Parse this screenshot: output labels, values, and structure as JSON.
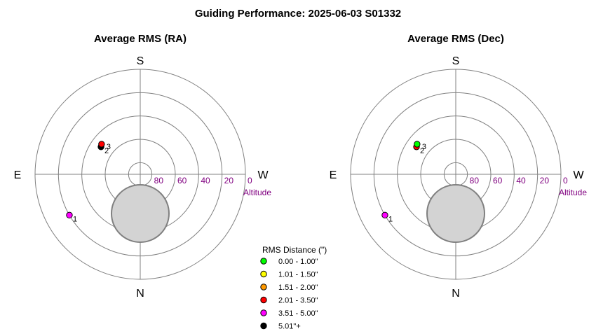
{
  "title": "Guiding Performance: 2025-06-03 S01332",
  "colors": {
    "ring": "#808080",
    "axis": "#808080",
    "altitude": "#800080",
    "zenith_fill": "#d3d3d3",
    "zenith_stroke": "#808080"
  },
  "legend": {
    "title": "RMS Distance (\")",
    "items": [
      {
        "label": "0.00 - 1.00\"",
        "color": "#00ff00"
      },
      {
        "label": "1.01 - 1.50\"",
        "color": "#ffff00"
      },
      {
        "label": "1.51 - 2.00\"",
        "color": "#ff9900"
      },
      {
        "label": "2.01 - 3.50\"",
        "color": "#ff0000"
      },
      {
        "label": "3.51 - 5.00\"",
        "color": "#ff00ff"
      },
      {
        "label": "5.01\"+",
        "color": "#000000"
      }
    ]
  },
  "chart_data": [
    {
      "type": "scatter",
      "projection": "polar-sky",
      "title": "Average RMS (RA)",
      "directions": {
        "top": "S",
        "bottom": "N",
        "left": "E",
        "right": "W"
      },
      "altitude_ticks": [
        "80",
        "60",
        "40",
        "20",
        "0"
      ],
      "altitude_label": "Altitude",
      "points": [
        {
          "label": "1",
          "azimuth": 60,
          "altitude": 20,
          "color": "#ff00ff"
        },
        {
          "label": "2",
          "azimuth": 125,
          "altitude": 49,
          "color": "#000000"
        },
        {
          "label": "3",
          "azimuth": 128,
          "altitude": 48,
          "color": "#ff0000"
        }
      ]
    },
    {
      "type": "scatter",
      "projection": "polar-sky",
      "title": "Average RMS (Dec)",
      "directions": {
        "top": "S",
        "bottom": "N",
        "left": "E",
        "right": "W"
      },
      "altitude_ticks": [
        "80",
        "60",
        "40",
        "20",
        "0"
      ],
      "altitude_label": "Altitude",
      "points": [
        {
          "label": "1",
          "azimuth": 60,
          "altitude": 20,
          "color": "#ff00ff"
        },
        {
          "label": "2",
          "azimuth": 125,
          "altitude": 49,
          "color": "#ff0000"
        },
        {
          "label": "3",
          "azimuth": 128,
          "altitude": 48,
          "color": "#00ff00"
        }
      ]
    }
  ]
}
